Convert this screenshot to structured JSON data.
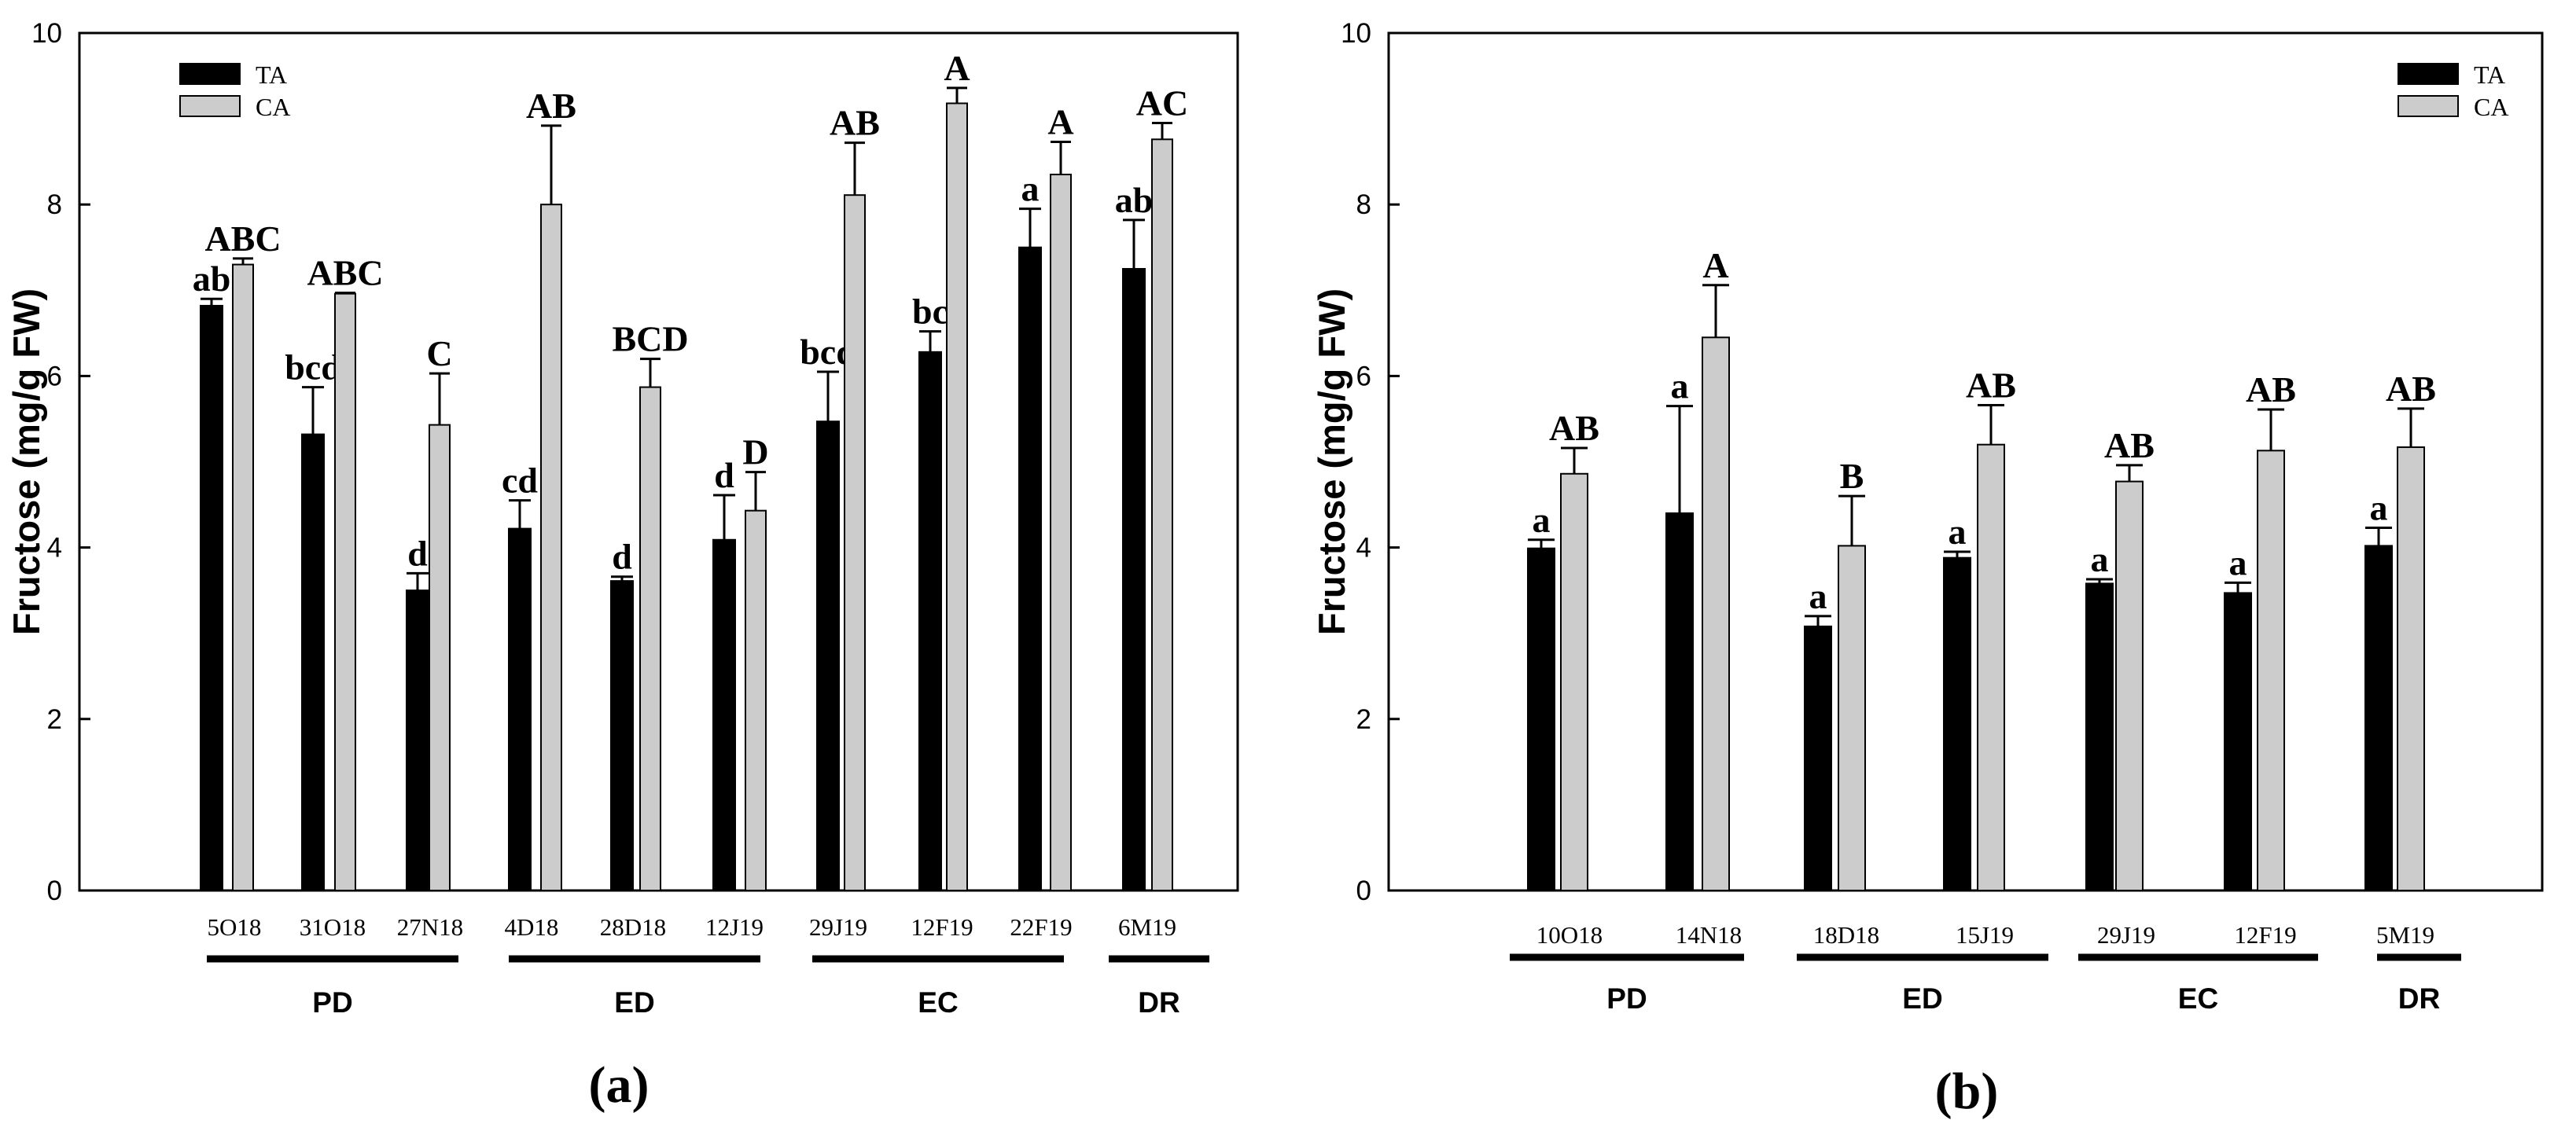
{
  "colors": {
    "ta": "#000000",
    "ca": "#cccccc",
    "axis": "#000000",
    "background": "#ffffff"
  },
  "chart_data": [
    {
      "type": "bar",
      "panel_label": "(a)",
      "title": "",
      "xlabel": "",
      "ylabel": "Fructose (mg/g FW)",
      "ylim": [
        0,
        10
      ],
      "yticks": [
        "0",
        "2",
        "4",
        "6",
        "8",
        "10"
      ],
      "grid": false,
      "legend_position": "top-left",
      "categories": [
        "5O18",
        "31O18",
        "27N18",
        "4D18",
        "28D18",
        "12J19",
        "29J19",
        "12F19",
        "22F19",
        "6M19"
      ],
      "series": [
        {
          "name": "TA",
          "values": [
            6.82,
            5.32,
            3.5,
            4.22,
            3.61,
            4.09,
            5.47,
            6.28,
            7.5,
            7.25
          ],
          "errors": [
            0.08,
            0.55,
            0.2,
            0.33,
            0.05,
            0.52,
            0.58,
            0.24,
            0.45,
            0.57
          ],
          "letters": [
            "ab",
            "bcd",
            "d",
            "cd",
            "d",
            "d",
            "bcd",
            "bc",
            "a",
            "ab"
          ]
        },
        {
          "name": "CA",
          "values": [
            7.3,
            6.96,
            5.43,
            8.0,
            5.87,
            4.43,
            8.11,
            9.18,
            8.35,
            8.76
          ],
          "errors": [
            0.07,
            0.01,
            0.6,
            0.92,
            0.33,
            0.45,
            0.61,
            0.18,
            0.38,
            0.19
          ],
          "letters": [
            "ABC",
            "ABC",
            "C",
            "AB",
            "BCD",
            "D",
            "AB",
            "A",
            "A",
            "AC"
          ]
        }
      ],
      "groups": [
        {
          "label": "PD",
          "from": 0,
          "to": 2
        },
        {
          "label": "ED",
          "from": 3,
          "to": 5
        },
        {
          "label": "EC",
          "from": 6,
          "to": 8
        },
        {
          "label": "DR",
          "from": 9,
          "to": 9
        }
      ]
    },
    {
      "type": "bar",
      "panel_label": "(b)",
      "title": "",
      "xlabel": "",
      "ylabel": "Fructose (mg/g FW)",
      "ylim": [
        0,
        10
      ],
      "yticks": [
        "0",
        "2",
        "4",
        "6",
        "8",
        "10"
      ],
      "grid": false,
      "legend_position": "top-right",
      "categories": [
        "10O18",
        "14N18",
        "18D18",
        "15J19",
        "29J19",
        "12F19",
        "5M19"
      ],
      "series": [
        {
          "name": "TA",
          "values": [
            3.99,
            4.4,
            3.08,
            3.88,
            3.58,
            3.47,
            4.02
          ],
          "errors": [
            0.1,
            1.25,
            0.12,
            0.07,
            0.05,
            0.12,
            0.21
          ],
          "letters": [
            "a",
            "a",
            "a",
            "a",
            "a",
            "a",
            "a"
          ]
        },
        {
          "name": "CA",
          "values": [
            4.86,
            6.45,
            4.02,
            5.2,
            4.77,
            5.13,
            5.17
          ],
          "errors": [
            0.3,
            0.61,
            0.58,
            0.46,
            0.19,
            0.48,
            0.45
          ],
          "letters": [
            "AB",
            "A",
            "B",
            "AB",
            "AB",
            "AB",
            "AB"
          ]
        }
      ],
      "groups": [
        {
          "label": "PD",
          "from": 0,
          "to": 1
        },
        {
          "label": "ED",
          "from": 2,
          "to": 3
        },
        {
          "label": "EC",
          "from": 4,
          "to": 5
        },
        {
          "label": "DR",
          "from": 6,
          "to": 6
        }
      ]
    }
  ]
}
